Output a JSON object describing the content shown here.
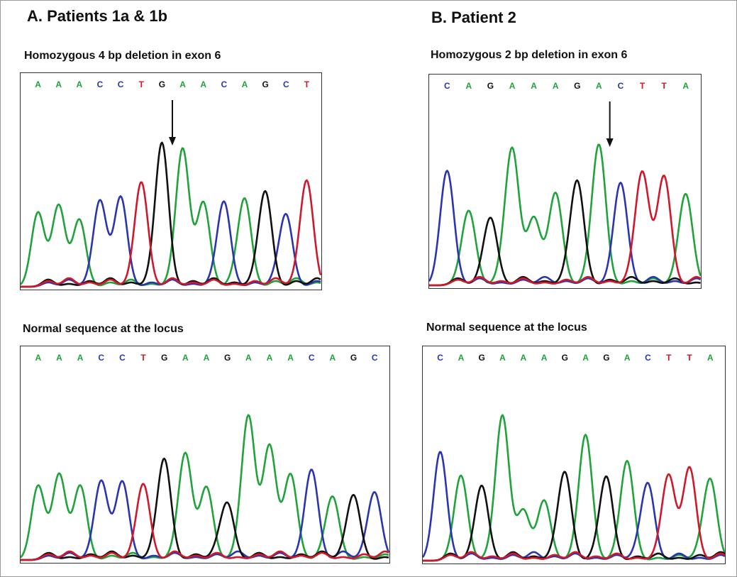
{
  "colors": {
    "A": "#1fa33a",
    "C": "#2b35b0",
    "G": "#111111",
    "T": "#d0182b"
  },
  "panels": [
    {
      "id": "panel-A",
      "title": "A. Patients 1a & 1b",
      "traces": [
        {
          "key": "p1-mutant",
          "label": "Homozygous 4 bp deletion in exon 6",
          "sequence": [
            "A",
            "A",
            "A",
            "C",
            "C",
            "T",
            "G",
            "A",
            "A",
            "C",
            "A",
            "G",
            "C",
            "T"
          ],
          "peaks": [
            0.52,
            0.57,
            0.47,
            0.6,
            0.63,
            0.73,
            1.0,
            0.96,
            0.59,
            0.59,
            0.61,
            0.66,
            0.5,
            0.74
          ],
          "arrow_at": 6.5
        },
        {
          "key": "p1-normal",
          "label": "Normal sequence at the locus",
          "sequence": [
            "A",
            "A",
            "A",
            "C",
            "C",
            "T",
            "G",
            "A",
            "A",
            "G",
            "A",
            "A",
            "A",
            "C",
            "A",
            "G",
            "C"
          ],
          "peaks": [
            0.52,
            0.6,
            0.52,
            0.55,
            0.55,
            0.53,
            0.7,
            0.74,
            0.51,
            0.39,
            1.0,
            0.8,
            0.6,
            0.63,
            0.44,
            0.45,
            0.47
          ]
        }
      ]
    },
    {
      "id": "panel-B",
      "title": "B. Patient 2",
      "traces": [
        {
          "key": "p2-mutant",
          "label": "Homozygous 2 bp deletion in exon 6",
          "sequence": [
            "C",
            "A",
            "G",
            "A",
            "A",
            "A",
            "G",
            "A",
            "C",
            "T",
            "T",
            "A"
          ],
          "peaks": [
            0.82,
            0.53,
            0.48,
            0.97,
            0.48,
            0.66,
            0.74,
            1.0,
            0.73,
            0.8,
            0.78,
            0.65
          ],
          "arrow_at": 7.5
        },
        {
          "key": "p2-normal",
          "label": "Normal sequence at the locus",
          "sequence": [
            "C",
            "A",
            "G",
            "A",
            "A",
            "A",
            "G",
            "A",
            "G",
            "A",
            "C",
            "T",
            "T",
            "A"
          ],
          "peaks": [
            0.76,
            0.59,
            0.52,
            1.0,
            0.35,
            0.42,
            0.61,
            0.87,
            0.58,
            0.69,
            0.53,
            0.59,
            0.65,
            0.56
          ]
        }
      ]
    }
  ]
}
